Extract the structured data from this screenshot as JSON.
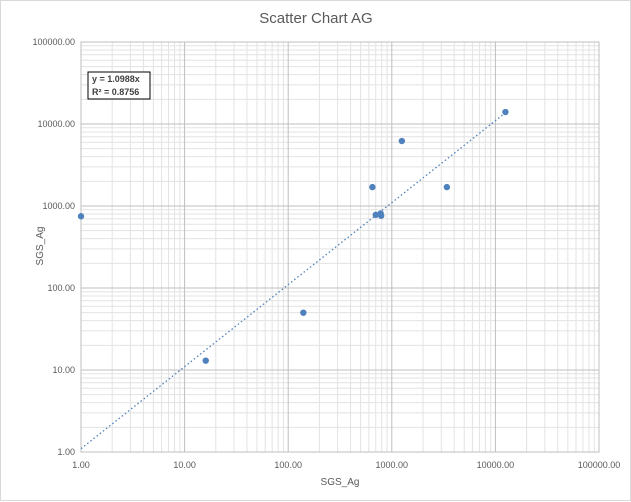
{
  "chart_data": {
    "type": "scatter",
    "title": "Scatter Chart  AG",
    "xlabel": "SGS_Ag",
    "ylabel": "SGS_Ag",
    "x_scale": "log",
    "y_scale": "log",
    "xlim": [
      1,
      100000
    ],
    "ylim": [
      1,
      100000
    ],
    "x_tick_labels": [
      "1.00",
      "10.00",
      "100.00",
      "1000.00",
      "10000.00",
      "100000.00"
    ],
    "y_tick_labels": [
      "1.00",
      "10.00",
      "100.00",
      "1000.00",
      "10000.00",
      "100000.00"
    ],
    "grid": "major and minor",
    "series": [
      {
        "points": [
          {
            "x": 1.0,
            "y": 750
          },
          {
            "x": 16,
            "y": 13
          },
          {
            "x": 140,
            "y": 50
          },
          {
            "x": 650,
            "y": 1700
          },
          {
            "x": 700,
            "y": 780
          },
          {
            "x": 780,
            "y": 810
          },
          {
            "x": 790,
            "y": 760
          },
          {
            "x": 1250,
            "y": 6200
          },
          {
            "x": 3400,
            "y": 1700
          },
          {
            "x": 12500,
            "y": 14000
          }
        ],
        "color": "#4f81bd"
      }
    ],
    "trendline": {
      "equation": "y = 1.0988x",
      "r_squared": "R² = 0.8756",
      "slope": 1.0988,
      "x_range": [
        1,
        12500
      ],
      "style": "dotted",
      "color": "#4f81bd"
    }
  }
}
